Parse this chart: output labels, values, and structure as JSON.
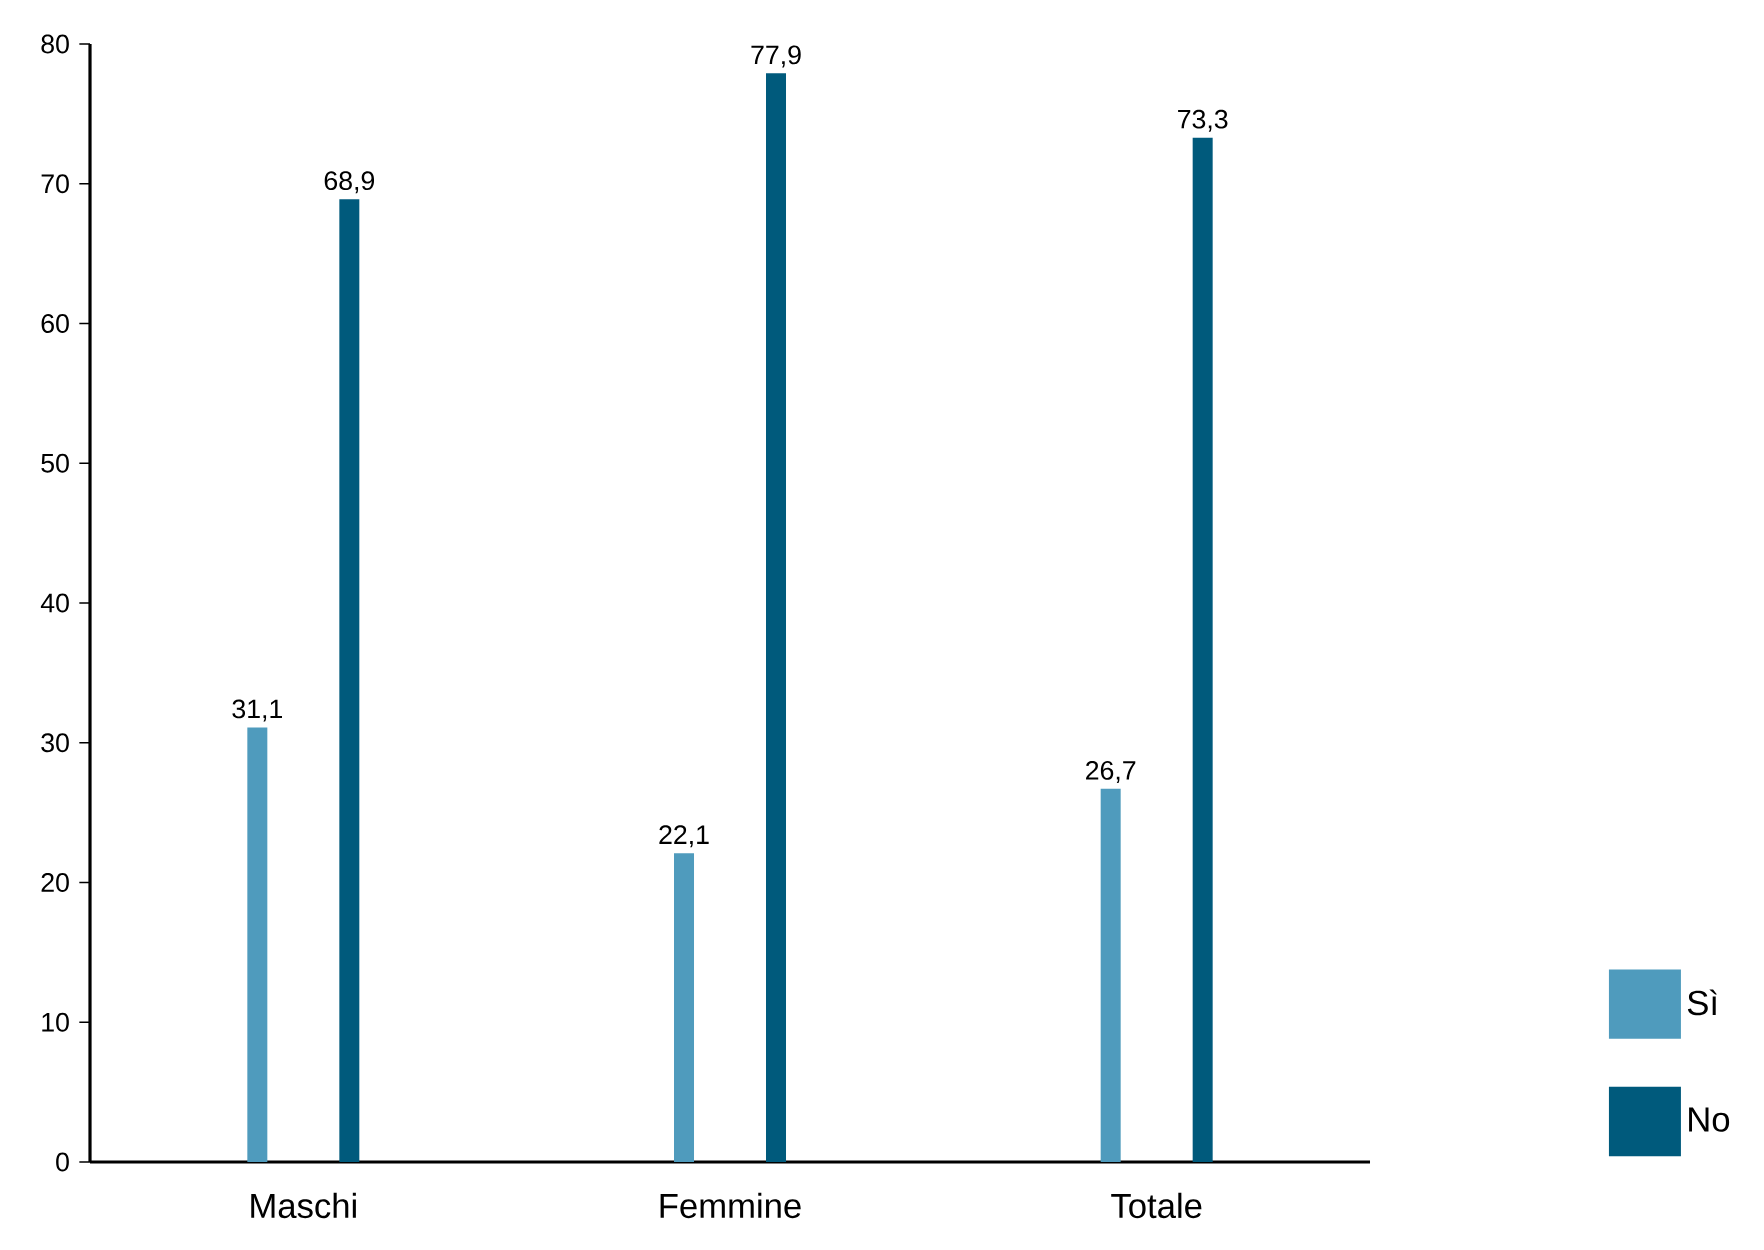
{
  "chart_data": {
    "type": "bar",
    "categories": [
      "Maschi",
      "Femmine",
      "Totale"
    ],
    "series": [
      {
        "name": "Sì",
        "color": "#4f9bbd",
        "values": [
          31.1,
          22.1,
          26.7
        ],
        "value_labels": [
          "31,1",
          "22,1",
          "26,7"
        ]
      },
      {
        "name": "No",
        "color": "#005a7c",
        "values": [
          68.9,
          77.9,
          73.3
        ],
        "value_labels": [
          "68,9",
          "77,9",
          "73,3"
        ]
      }
    ],
    "ylim": [
      0,
      80
    ],
    "yticks": [
      0,
      10,
      20,
      30,
      40,
      50,
      60,
      70,
      80
    ],
    "legend": "right",
    "grid": false
  }
}
